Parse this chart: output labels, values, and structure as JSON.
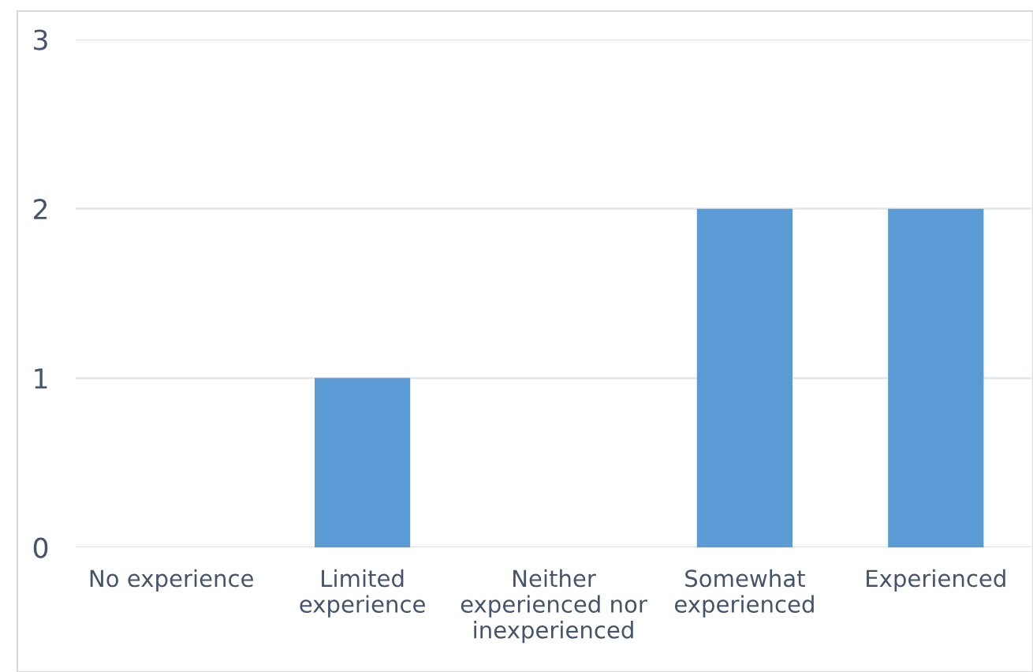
{
  "chart_data": {
    "type": "bar",
    "categories": [
      "No experience",
      "Limited\nexperience",
      "Neither\nexperienced nor\ninexperienced",
      "Somewhat\nexperienced",
      "Experienced"
    ],
    "values": [
      0,
      1,
      0,
      2,
      2
    ],
    "color": "#5b9bd5",
    "ylim": [
      0,
      3
    ],
    "yticks": [
      0,
      1,
      2,
      3
    ],
    "grid": "y",
    "legend": false
  }
}
